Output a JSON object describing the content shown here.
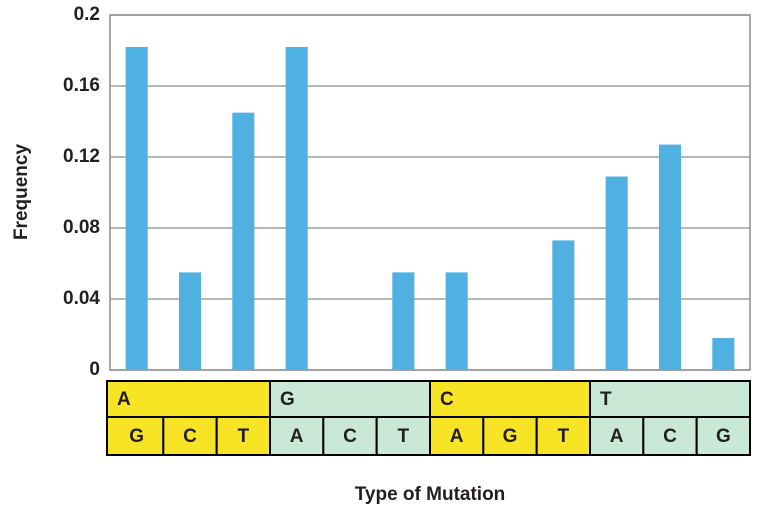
{
  "chart_data": {
    "type": "bar",
    "y_label": "Frequency",
    "x_label": "Type of Mutation",
    "groups": [
      "A",
      "G",
      "C",
      "T"
    ],
    "group_colors": [
      "#f7e425",
      "#c9e8d5",
      "#f7e425",
      "#c9e8d5"
    ],
    "categories": [
      "G",
      "C",
      "T",
      "A",
      "C",
      "T",
      "A",
      "G",
      "T",
      "A",
      "C",
      "G"
    ],
    "values": [
      0.182,
      0.055,
      0.145,
      0.182,
      0,
      0.055,
      0.055,
      0,
      0.073,
      0.109,
      0.127,
      0.018
    ],
    "color": "#4fb0e2",
    "ylim": [
      0,
      0.2
    ],
    "yticks": [
      0,
      0.04,
      0.08,
      0.12,
      0.16,
      0.2
    ],
    "grid": true
  }
}
